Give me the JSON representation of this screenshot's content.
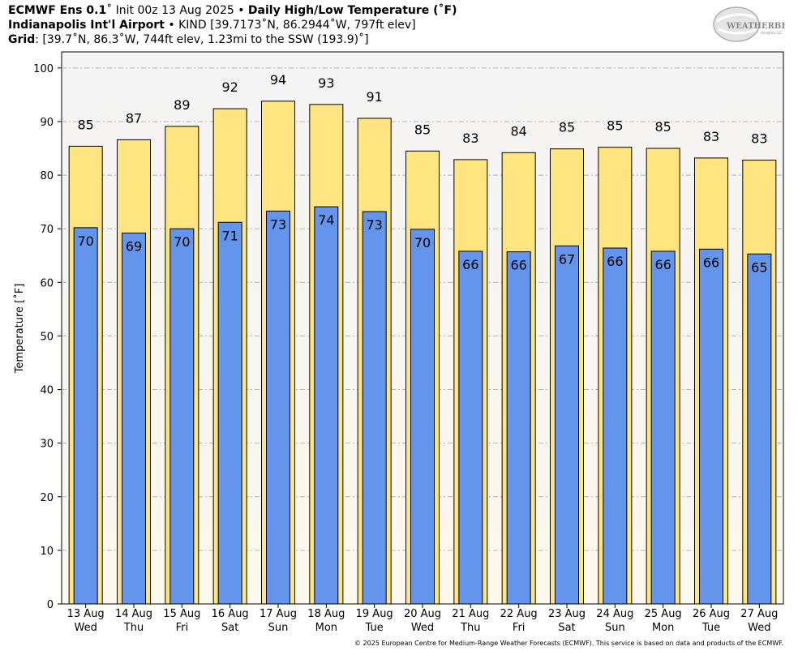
{
  "header": {
    "line1_bold": "ECMWF Ens 0.1",
    "line1_deg": "˚",
    "line1_mid": " Init 00z 13 Aug 2025 • ",
    "line1_bold2": "Daily High/Low Temperature (˚F)",
    "line2_bold": "Indianapolis Int'l Airport",
    "line2_rest": " • KIND [39.7173˚N, 86.2944˚W, 797ft elev]",
    "line3_bold": "Grid",
    "line3_rest": ": [39.7˚N, 86.3˚W, 744ft elev, 1.23mi to the SSW (193.9)˚]"
  },
  "logo": {
    "text_main": "WEATHERBELL",
    "text_sub": "Analytics LLC"
  },
  "footer": {
    "text": "© 2025 European Centre for Medium-Range Weather Forecasts (ECMWF). This service is based on data and products of the ECMWF."
  },
  "colors": {
    "high": "#ffe47f",
    "low": "#6495ed",
    "plot_bg_top": "#f4f4f4",
    "plot_bg_bottom": "#fdf8ec",
    "grid": "#b7b7b7"
  },
  "chart_data": {
    "type": "bar",
    "ylabel": "Temperature [˚F]",
    "ylim": [
      0,
      103
    ],
    "yticks": [
      0,
      10,
      20,
      30,
      40,
      50,
      60,
      70,
      80,
      90,
      100
    ],
    "grid": true,
    "categories": [
      {
        "date": "13 Aug",
        "day": "Wed"
      },
      {
        "date": "14 Aug",
        "day": "Thu"
      },
      {
        "date": "15 Aug",
        "day": "Fri"
      },
      {
        "date": "16 Aug",
        "day": "Sat"
      },
      {
        "date": "17 Aug",
        "day": "Sun"
      },
      {
        "date": "18 Aug",
        "day": "Mon"
      },
      {
        "date": "19 Aug",
        "day": "Tue"
      },
      {
        "date": "20 Aug",
        "day": "Wed"
      },
      {
        "date": "21 Aug",
        "day": "Thu"
      },
      {
        "date": "22 Aug",
        "day": "Fri"
      },
      {
        "date": "23 Aug",
        "day": "Sat"
      },
      {
        "date": "24 Aug",
        "day": "Sun"
      },
      {
        "date": "25 Aug",
        "day": "Mon"
      },
      {
        "date": "26 Aug",
        "day": "Tue"
      },
      {
        "date": "27 Aug",
        "day": "Wed"
      }
    ],
    "series": [
      {
        "name": "",
        "role": "high",
        "values": [
          85.4,
          86.6,
          89.1,
          92.4,
          93.8,
          93.2,
          90.6,
          84.5,
          82.9,
          84.2,
          84.9,
          85.2,
          85.0,
          83.2,
          82.8
        ],
        "labels": [
          "85",
          "87",
          "89",
          "92",
          "94",
          "93",
          "91",
          "85",
          "83",
          "84",
          "85",
          "85",
          "85",
          "83",
          "83"
        ]
      },
      {
        "name": "",
        "role": "low",
        "values": [
          70.2,
          69.2,
          70.0,
          71.2,
          73.3,
          74.1,
          73.2,
          69.9,
          65.8,
          65.7,
          66.8,
          66.4,
          65.8,
          66.2,
          65.3
        ],
        "labels": [
          "70",
          "69",
          "70",
          "71",
          "73",
          "74",
          "73",
          "70",
          "66",
          "66",
          "67",
          "66",
          "66",
          "66",
          "65"
        ]
      }
    ]
  }
}
